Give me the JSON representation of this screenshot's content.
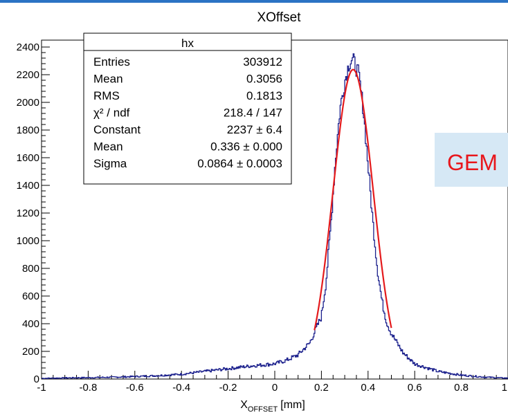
{
  "chart_data": {
    "type": "histogram",
    "title": "XOffset",
    "xlabel_main": "X",
    "xlabel_sub": "OFFSET",
    "xlabel_unit": "[mm]",
    "ylabel": "",
    "xlim": [
      -1,
      1
    ],
    "ylim": [
      0,
      2450
    ],
    "x_ticks": [
      "-1",
      "-0.8",
      "-0.6",
      "-0.4",
      "-0.2",
      "0",
      "0.2",
      "0.4",
      "0.6",
      "0.8",
      "1"
    ],
    "y_ticks": [
      "0",
      "200",
      "400",
      "600",
      "800",
      "1000",
      "1200",
      "1400",
      "1600",
      "1800",
      "2000",
      "2200",
      "2400"
    ],
    "grid": false,
    "histogram_color": "#1a1f8c",
    "fit_color": "#e41a1c",
    "series": [
      {
        "kind": "histogram",
        "x": [
          -1.0,
          -0.9,
          -0.8,
          -0.7,
          -0.6,
          -0.5,
          -0.4,
          -0.3,
          -0.2,
          -0.1,
          0.0,
          0.05,
          0.1,
          0.15,
          0.2,
          0.22,
          0.24,
          0.26,
          0.28,
          0.3,
          0.32,
          0.33,
          0.34,
          0.35,
          0.36,
          0.38,
          0.4,
          0.42,
          0.44,
          0.46,
          0.48,
          0.5,
          0.55,
          0.6,
          0.7,
          0.8,
          0.9,
          1.0
        ],
        "y": [
          5,
          8,
          10,
          13,
          18,
          25,
          35,
          55,
          75,
          95,
          110,
          135,
          175,
          260,
          450,
          700,
          1100,
          1580,
          1950,
          2150,
          2290,
          2310,
          2290,
          2250,
          2200,
          1950,
          1550,
          1150,
          800,
          560,
          410,
          330,
          190,
          110,
          55,
          28,
          14,
          6
        ]
      },
      {
        "kind": "gaussian_fit",
        "constant": 2237,
        "mean": 0.336,
        "sigma": 0.0864,
        "range": [
          0.17,
          0.5
        ]
      }
    ]
  },
  "stats_box": {
    "title": "hx",
    "rows": [
      {
        "label": "Entries",
        "value": "303912"
      },
      {
        "label": "Mean",
        "value": "0.3056"
      },
      {
        "label": "RMS",
        "value": "0.1813"
      },
      {
        "label": "χ² / ndf",
        "value": "218.4 / 147"
      },
      {
        "label": "Constant",
        "value": "2237 ± 6.4"
      },
      {
        "label": "Mean",
        "value": "0.336 ± 0.000"
      },
      {
        "label": "Sigma",
        "value": "0.0864 ± 0.0003"
      }
    ]
  },
  "overlay": {
    "text": "GEM",
    "background": "#d6e8f5"
  }
}
